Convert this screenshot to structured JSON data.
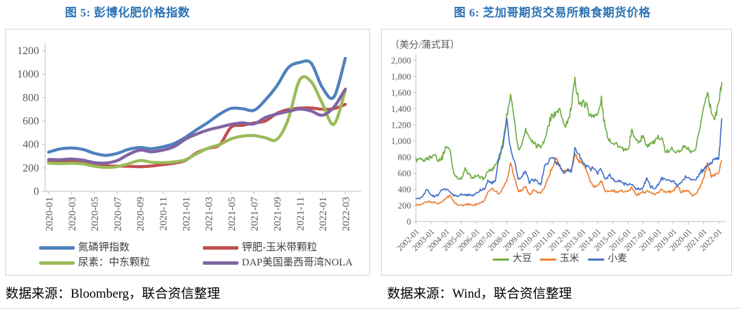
{
  "left": {
    "title": "图 5: 彭博化肥价格指数",
    "source": "数据来源：Bloomberg，联合资信整理"
  },
  "right": {
    "title": "图 6: 芝加哥期货交易所粮食期货价格",
    "source": "数据来源：Wind，联合资信整理"
  },
  "colors": {
    "title_blue": "#2E74B5",
    "axis_line": "#BFBFBF",
    "axis_text": "#595959"
  },
  "chart_data": [
    {
      "type": "line",
      "title": "图 5: 彭博化肥价格指数",
      "smooth": true,
      "grid": false,
      "legend_position": "bottom",
      "ylim": [
        0,
        1200
      ],
      "ytick_step": 200,
      "xtick_every": 2,
      "categories": [
        "2020-01",
        "2020-02",
        "2020-03",
        "2020-04",
        "2020-05",
        "2020-06",
        "2020-07",
        "2020-08",
        "2020-09",
        "2020-10",
        "2020-11",
        "2020-12",
        "2021-01",
        "2021-02",
        "2021-03",
        "2021-04",
        "2021-05",
        "2021-06",
        "2021-07",
        "2021-08",
        "2021-09",
        "2021-10",
        "2021-11",
        "2021-12",
        "2022-01",
        "2022-02",
        "2022-03"
      ],
      "series": [
        {
          "name": "氮磷钾指数",
          "color": "#4F81BD",
          "values": [
            335,
            362,
            370,
            358,
            325,
            307,
            324,
            358,
            374,
            364,
            380,
            408,
            462,
            528,
            590,
            660,
            708,
            705,
            692,
            780,
            900,
            1055,
            1100,
            1095,
            885,
            805,
            1135
          ]
        },
        {
          "name": "钾肥-玉米带颗粒",
          "color": "#C0504D",
          "values": [
            253,
            250,
            252,
            248,
            232,
            218,
            215,
            214,
            210,
            216,
            228,
            240,
            265,
            330,
            368,
            398,
            548,
            564,
            584,
            600,
            665,
            698,
            710,
            712,
            700,
            706,
            742
          ]
        },
        {
          "name": "尿素：中东颗粒",
          "color": "#9BBB59",
          "values": [
            241,
            237,
            240,
            234,
            215,
            204,
            210,
            236,
            263,
            249,
            245,
            251,
            270,
            322,
            370,
            400,
            448,
            472,
            476,
            458,
            443,
            614,
            950,
            938,
            748,
            572,
            862
          ]
        },
        {
          "name": "DAP美国墨西哥湾NOLA",
          "color": "#8064A2",
          "values": [
            272,
            270,
            276,
            266,
            245,
            241,
            262,
            315,
            352,
            338,
            352,
            382,
            446,
            490,
            525,
            548,
            572,
            584,
            576,
            630,
            660,
            682,
            702,
            686,
            650,
            718,
            872
          ]
        }
      ]
    },
    {
      "type": "line",
      "title": "图 6: 芝加哥期货交易所粮食期货价格",
      "ylabel": "（美分/蒲式耳）",
      "smooth": false,
      "grid": false,
      "legend_position": "bottom",
      "ylim": [
        0,
        2000
      ],
      "ytick_step": 200,
      "xtick_labels": [
        "2002-01",
        "2003-01",
        "2004-01",
        "2005-01",
        "2006-01",
        "2007-01",
        "2008-01",
        "2009-01",
        "2010-01",
        "2011-01",
        "2012-01",
        "2013-01",
        "2014-01",
        "2015-01",
        "2016-01",
        "2017-01",
        "2018-01",
        "2019-01",
        "2020-01",
        "2021-01",
        "2022-01"
      ],
      "x": [
        2002,
        2002.25,
        2002.5,
        2002.75,
        2003,
        2003.25,
        2003.5,
        2003.75,
        2004,
        2004.25,
        2004.5,
        2004.75,
        2005,
        2005.25,
        2005.5,
        2005.75,
        2006,
        2006.25,
        2006.5,
        2006.75,
        2007,
        2007.25,
        2007.5,
        2007.75,
        2008,
        2008.25,
        2008.5,
        2008.75,
        2009,
        2009.25,
        2009.5,
        2009.75,
        2010,
        2010.25,
        2010.5,
        2010.75,
        2011,
        2011.25,
        2011.5,
        2011.75,
        2012,
        2012.25,
        2012.5,
        2012.75,
        2013,
        2013.25,
        2013.5,
        2013.75,
        2014,
        2014.25,
        2014.5,
        2014.75,
        2015,
        2015.25,
        2015.5,
        2015.75,
        2016,
        2016.25,
        2016.5,
        2016.75,
        2017,
        2017.25,
        2017.5,
        2017.75,
        2018,
        2018.25,
        2018.5,
        2018.75,
        2019,
        2019.25,
        2019.5,
        2019.75,
        2020,
        2020.25,
        2020.5,
        2020.75,
        2021,
        2021.25,
        2021.5,
        2021.75,
        2022,
        2022.2
      ],
      "series": [
        {
          "name": "大豆",
          "color": "#70AD47",
          "values": [
            760,
            770,
            740,
            790,
            800,
            830,
            760,
            800,
            950,
            880,
            600,
            540,
            520,
            650,
            580,
            540,
            560,
            560,
            530,
            620,
            640,
            700,
            780,
            1000,
            1300,
            1580,
            1250,
            890,
            970,
            1140,
            1050,
            980,
            950,
            940,
            1000,
            1200,
            1320,
            1340,
            1400,
            1180,
            1220,
            1400,
            1760,
            1500,
            1450,
            1480,
            1300,
            1320,
            1320,
            1500,
            1150,
            1020,
            980,
            960,
            920,
            880,
            880,
            1140,
            1010,
            1000,
            1050,
            950,
            980,
            990,
            1030,
            1040,
            850,
            880,
            910,
            860,
            890,
            930,
            890,
            850,
            900,
            1170,
            1400,
            1630,
            1380,
            1270,
            1480,
            1730
          ]
        },
        {
          "name": "玉米",
          "color": "#ED7D31",
          "values": [
            210,
            205,
            230,
            245,
            235,
            240,
            220,
            245,
            290,
            320,
            240,
            205,
            200,
            210,
            215,
            200,
            215,
            230,
            250,
            370,
            400,
            380,
            340,
            420,
            500,
            730,
            550,
            380,
            390,
            430,
            330,
            390,
            360,
            345,
            440,
            560,
            660,
            790,
            700,
            620,
            640,
            620,
            830,
            740,
            730,
            660,
            500,
            430,
            450,
            510,
            370,
            380,
            385,
            370,
            380,
            370,
            370,
            420,
            330,
            350,
            365,
            370,
            355,
            345,
            365,
            400,
            355,
            370,
            375,
            450,
            370,
            385,
            380,
            320,
            350,
            420,
            550,
            730,
            560,
            570,
            620,
            760
          ]
        },
        {
          "name": "小麦",
          "color": "#4472C4",
          "values": [
            290,
            280,
            330,
            400,
            330,
            310,
            340,
            400,
            400,
            380,
            320,
            310,
            340,
            330,
            330,
            320,
            350,
            390,
            400,
            500,
            480,
            510,
            800,
            950,
            1270,
            900,
            750,
            520,
            560,
            620,
            480,
            520,
            500,
            450,
            700,
            750,
            790,
            740,
            680,
            600,
            640,
            620,
            900,
            850,
            740,
            700,
            650,
            660,
            600,
            650,
            520,
            580,
            520,
            500,
            500,
            470,
            460,
            470,
            400,
            400,
            420,
            530,
            440,
            420,
            450,
            540,
            510,
            510,
            510,
            450,
            480,
            550,
            550,
            520,
            530,
            600,
            650,
            680,
            720,
            800,
            770,
            1280
          ]
        }
      ]
    }
  ]
}
